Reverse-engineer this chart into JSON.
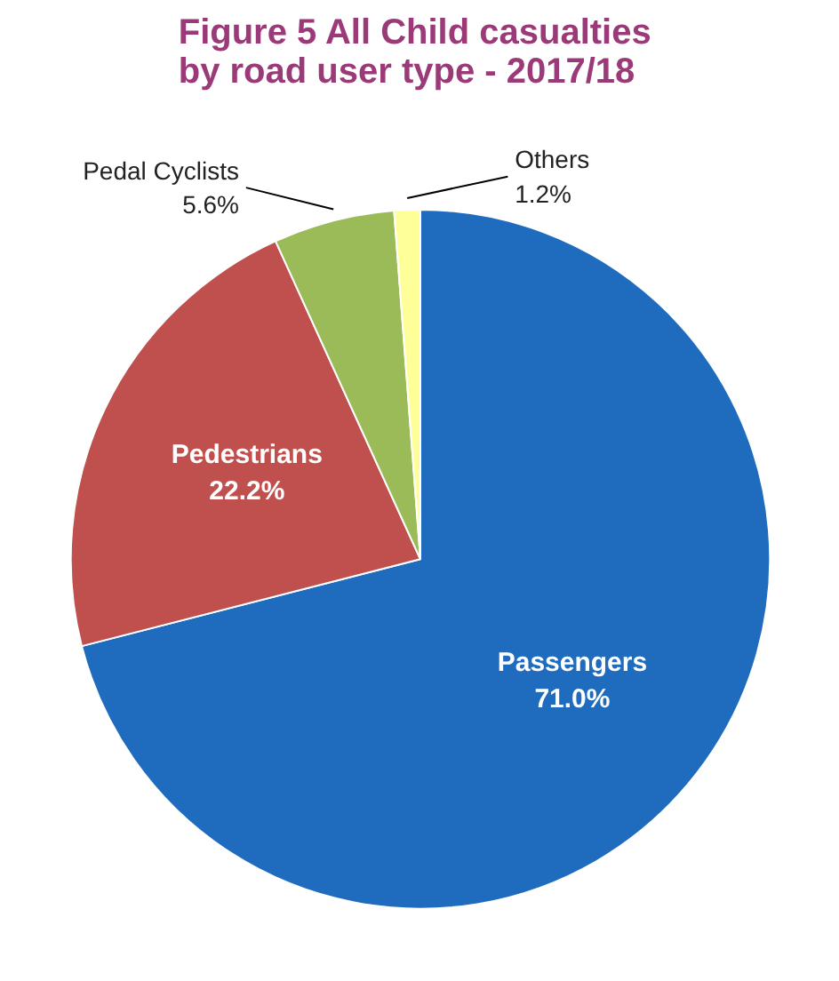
{
  "chart_data": {
    "type": "pie",
    "title": "Figure 5 All  Child casualties\nby road user type - 2017/18",
    "categories": [
      "Passengers",
      "Pedestrians",
      "Pedal Cyclists",
      "Others"
    ],
    "values": [
      71.0,
      22.2,
      5.6,
      1.2
    ],
    "value_labels": [
      "71.0%",
      "22.2%",
      "5.6%",
      "1.2%"
    ],
    "colors": [
      "#1f6cbf",
      "#c0504d",
      "#9bbb59",
      "#ffff99"
    ],
    "legend": false
  }
}
